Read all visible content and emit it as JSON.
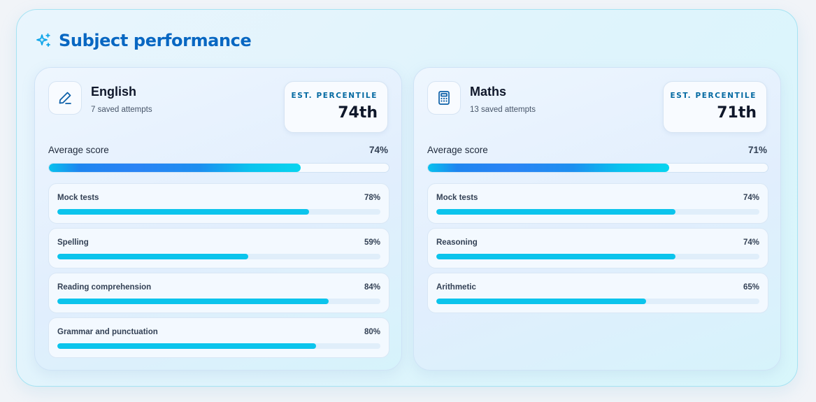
{
  "header": {
    "title": "Subject performance",
    "icon": "sparkles-icon",
    "accent_color": "#0867c2"
  },
  "subjects": [
    {
      "name": "English",
      "icon": "pen-icon",
      "attempts": "7 saved attempts",
      "percentile_label": "EST. PERCENTILE",
      "percentile": "74th",
      "average_label": "Average score",
      "average_value": "74%",
      "average_fraction": 0.74,
      "topics": [
        {
          "label": "Mock tests",
          "value": "78%",
          "fraction": 0.78
        },
        {
          "label": "Spelling",
          "value": "59%",
          "fraction": 0.59
        },
        {
          "label": "Reading comprehension",
          "value": "84%",
          "fraction": 0.84
        },
        {
          "label": "Grammar and punctuation",
          "value": "80%",
          "fraction": 0.8
        }
      ]
    },
    {
      "name": "Maths",
      "icon": "calculator-icon",
      "attempts": "13 saved attempts",
      "percentile_label": "EST. PERCENTILE",
      "percentile": "71th",
      "average_label": "Average score",
      "average_value": "71%",
      "average_fraction": 0.71,
      "topics": [
        {
          "label": "Mock tests",
          "value": "74%",
          "fraction": 0.74
        },
        {
          "label": "Reasoning",
          "value": "74%",
          "fraction": 0.74
        },
        {
          "label": "Arithmetic",
          "value": "65%",
          "fraction": 0.65
        }
      ]
    }
  ]
}
